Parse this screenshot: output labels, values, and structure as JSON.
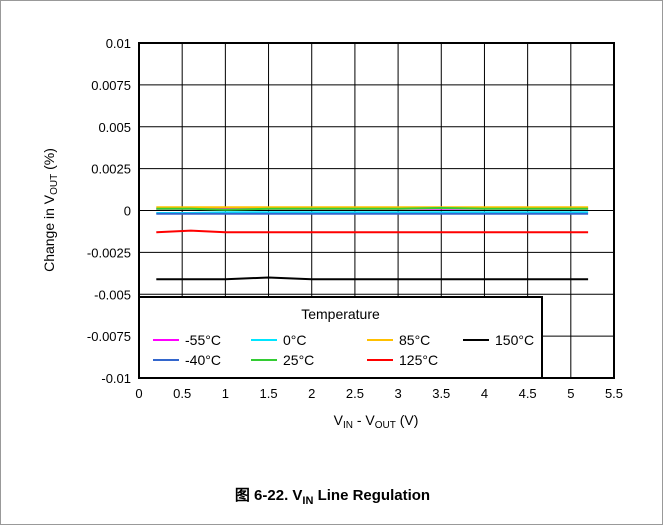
{
  "figure": {
    "caption_prefix": "图 6-22. V",
    "caption_sub": "IN",
    "caption_suffix": " Line Regulation"
  },
  "chart_data": {
    "type": "line",
    "xlabel_parts": [
      "V",
      "IN",
      " - V",
      "OUT",
      " (V)"
    ],
    "ylabel_parts": [
      "Change in V",
      "OUT",
      " (%)"
    ],
    "xlim": [
      0,
      5.5
    ],
    "ylim": [
      -0.01,
      0.01
    ],
    "x_ticks": [
      "0",
      "0.5",
      "1",
      "1.5",
      "2",
      "2.5",
      "3",
      "3.5",
      "4",
      "4.5",
      "5",
      "5.5"
    ],
    "y_ticks": [
      "0.01",
      "0.0075",
      "0.005",
      "0.0025",
      "0",
      "-0.0025",
      "-0.005",
      "-0.0075",
      "-0.01"
    ],
    "grid": true,
    "legend_title": "Temperature",
    "legend_position": "bottom-left",
    "series": [
      {
        "name": "-55°C",
        "color": "#ff00ff",
        "x": [
          0.2,
          0.6,
          1.0,
          1.5,
          2.0,
          2.5,
          3.0,
          3.5,
          4.0,
          4.5,
          5.0,
          5.2
        ],
        "y": [
          0.0001,
          0.0001,
          0.0001,
          0.0001,
          0.0001,
          0.0001,
          0.0001,
          0.0001,
          0.0001,
          0.0001,
          0.0001,
          0.0001
        ]
      },
      {
        "name": "0°C",
        "color": "#00e5ff",
        "x": [
          0.2,
          0.6,
          1.0,
          1.5,
          2.0,
          2.5,
          3.0,
          3.5,
          4.0,
          4.5,
          5.0,
          5.2
        ],
        "y": [
          -0.00015,
          -0.00015,
          -0.0001,
          -0.0001,
          -0.0001,
          -0.0001,
          -0.0001,
          -0.0001,
          -0.0001,
          -0.0001,
          -0.0001,
          -0.0001
        ]
      },
      {
        "name": "85°C",
        "color": "#ffc000",
        "x": [
          0.2,
          0.6,
          1.0,
          1.5,
          2.0,
          2.5,
          3.0,
          3.5,
          4.0,
          4.5,
          5.0,
          5.2
        ],
        "y": [
          0.0002,
          0.0002,
          0.0002,
          0.0002,
          0.0002,
          0.0002,
          0.0002,
          0.0002,
          0.0002,
          0.0002,
          0.0002,
          0.0002
        ]
      },
      {
        "name": "150°C",
        "color": "#000000",
        "x": [
          0.2,
          0.6,
          1.0,
          1.5,
          2.0,
          2.5,
          3.0,
          3.5,
          4.0,
          4.5,
          5.0,
          5.2
        ],
        "y": [
          -0.0041,
          -0.0041,
          -0.0041,
          -0.004,
          -0.0041,
          -0.0041,
          -0.0041,
          -0.0041,
          -0.0041,
          -0.0041,
          -0.0041,
          -0.0041
        ]
      },
      {
        "name": "-40°C",
        "color": "#3366cc",
        "x": [
          0.2,
          0.6,
          1.0,
          1.5,
          2.0,
          2.5,
          3.0,
          3.5,
          4.0,
          4.5,
          5.0,
          5.2
        ],
        "y": [
          -0.0002,
          -0.0002,
          -0.0002,
          -0.0002,
          -0.0002,
          -0.0002,
          -0.0002,
          -0.0002,
          -0.0002,
          -0.0002,
          -0.0002,
          -0.0002
        ]
      },
      {
        "name": "25°C",
        "color": "#33cc33",
        "x": [
          0.2,
          0.6,
          1.0,
          1.5,
          2.0,
          2.5,
          3.0,
          3.5,
          4.0,
          4.5,
          5.0,
          5.2
        ],
        "y": [
          0.0001,
          0.0001,
          5e-05,
          0.0001,
          0.0001,
          0.0001,
          0.0001,
          0.00015,
          0.0001,
          0.0001,
          0.0001,
          0.0001
        ]
      },
      {
        "name": "125°C",
        "color": "#ff0000",
        "x": [
          0.2,
          0.6,
          1.0,
          1.5,
          2.0,
          2.5,
          3.0,
          3.5,
          4.0,
          4.5,
          5.0,
          5.2
        ],
        "y": [
          -0.0013,
          -0.0012,
          -0.0013,
          -0.0013,
          -0.0013,
          -0.0013,
          -0.0013,
          -0.0013,
          -0.0013,
          -0.0013,
          -0.0013,
          -0.0013
        ]
      }
    ]
  }
}
